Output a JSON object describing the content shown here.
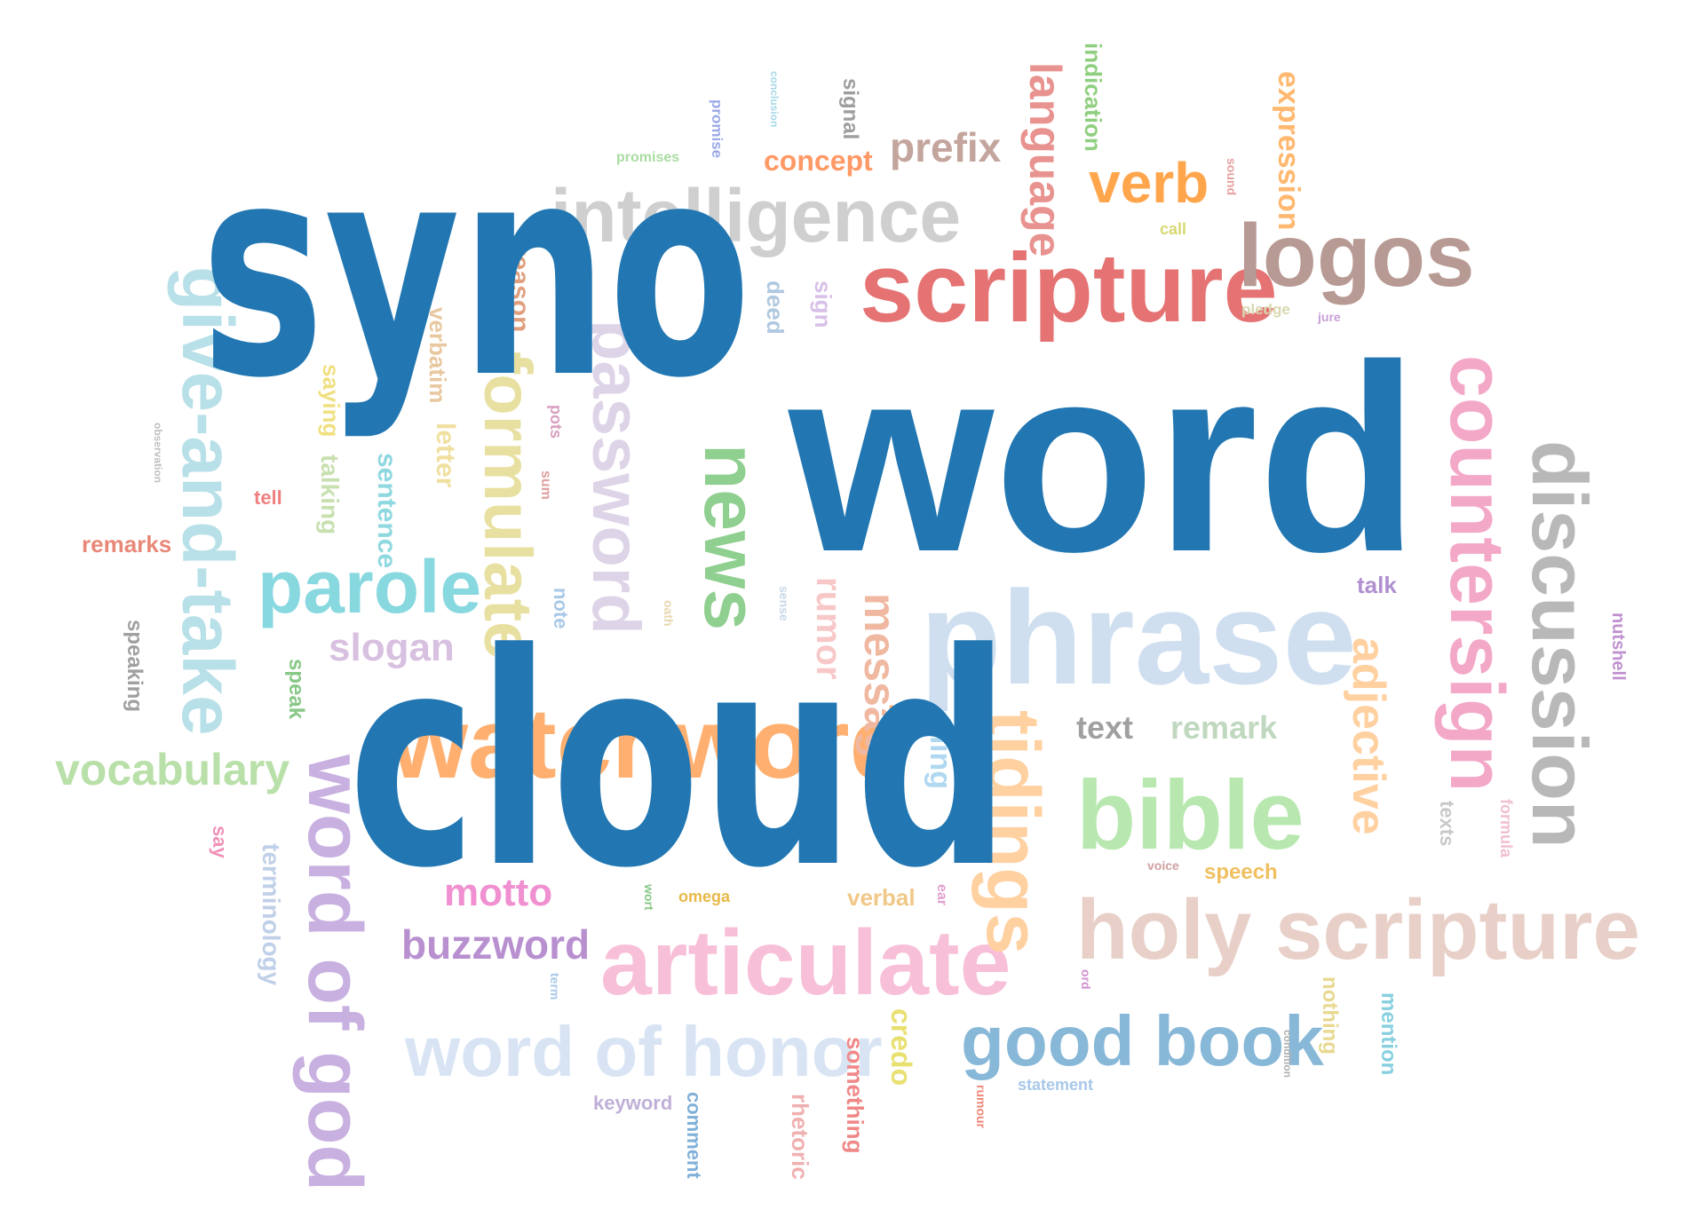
{
  "headline": {
    "line1": "syno",
    "line2": "word",
    "line3": "cloud",
    "color": "#2277b2"
  },
  "words": [
    {
      "text": "word",
      "color": "#2277b2"
    },
    {
      "text": "intelligence",
      "color": "#cfcfcf"
    },
    {
      "text": "scripture",
      "color": "#e57373"
    },
    {
      "text": "logos",
      "color": "#b89a94"
    },
    {
      "text": "verb",
      "color": "#ffa64d"
    },
    {
      "text": "prefix",
      "color": "#c4a59e"
    },
    {
      "text": "concept",
      "color": "#ff9966"
    },
    {
      "text": "language",
      "color": "#e8938f"
    },
    {
      "text": "indication",
      "color": "#8fcf7f"
    },
    {
      "text": "expression",
      "color": "#ffb870"
    },
    {
      "text": "signal",
      "color": "#9e9e9e"
    },
    {
      "text": "conclusion",
      "color": "#a8d8e8"
    },
    {
      "text": "promise",
      "color": "#9aa8e8"
    },
    {
      "text": "promises",
      "color": "#a8dca0"
    },
    {
      "text": "sound",
      "color": "#e8a0a0"
    },
    {
      "text": "call",
      "color": "#d8d870"
    },
    {
      "text": "pledge",
      "color": "#d8d8b0"
    },
    {
      "text": "jure",
      "color": "#c8a0d8"
    },
    {
      "text": "countersign",
      "color": "#f4a8c8"
    },
    {
      "text": "discussion",
      "color": "#b8b8b8"
    },
    {
      "text": "phrase",
      "color": "#cfdff0"
    },
    {
      "text": "news",
      "color": "#8fcf8f"
    },
    {
      "text": "password",
      "color": "#ded4e8"
    },
    {
      "text": "formulate",
      "color": "#e8e0a0"
    },
    {
      "text": "give-and-take",
      "color": "#b8e0e8"
    },
    {
      "text": "parole",
      "color": "#88d8e0"
    },
    {
      "text": "slogan",
      "color": "#d8c0e0"
    },
    {
      "text": "vocabulary",
      "color": "#b8e0a8"
    },
    {
      "text": "remarks",
      "color": "#e88878"
    },
    {
      "text": "tell",
      "color": "#f08080"
    },
    {
      "text": "speaking",
      "color": "#a0a0a0"
    },
    {
      "text": "speak",
      "color": "#88c888"
    },
    {
      "text": "watchword",
      "color": "#ffb070"
    },
    {
      "text": "word of god",
      "color": "#c8b0e0"
    },
    {
      "text": "motto",
      "color": "#f090d0"
    },
    {
      "text": "buzzword",
      "color": "#b890d0"
    },
    {
      "text": "articulate",
      "color": "#f8c0d8"
    },
    {
      "text": "tidings",
      "color": "#ffd0a0"
    },
    {
      "text": "bible",
      "color": "#b8e8b0"
    },
    {
      "text": "holy scripture",
      "color": "#e8d0c8"
    },
    {
      "text": "good book",
      "color": "#88b8d8"
    },
    {
      "text": "word of honor",
      "color": "#d8e4f4"
    },
    {
      "text": "text",
      "color": "#a0a0a0"
    },
    {
      "text": "remark",
      "color": "#c0d8c0"
    },
    {
      "text": "adjective",
      "color": "#ffd0a0"
    },
    {
      "text": "talk",
      "color": "#b090d0"
    },
    {
      "text": "nutshell",
      "color": "#c090d0"
    },
    {
      "text": "formula",
      "color": "#f0c0d0"
    },
    {
      "text": "texts",
      "color": "#c8c8c8"
    },
    {
      "text": "speech",
      "color": "#f0c060"
    },
    {
      "text": "voice",
      "color": "#d0a0a0"
    },
    {
      "text": "nothing",
      "color": "#e8d890"
    },
    {
      "text": "mention",
      "color": "#88d0e0"
    },
    {
      "text": "condition",
      "color": "#b0b0b0"
    },
    {
      "text": "statement",
      "color": "#a8c8e8"
    },
    {
      "text": "rumour",
      "color": "#f08878"
    },
    {
      "text": "credo",
      "color": "#e8e070"
    },
    {
      "text": "something",
      "color": "#f08888"
    },
    {
      "text": "rhetoric",
      "color": "#f0b0b0"
    },
    {
      "text": "comment",
      "color": "#80b0d8"
    },
    {
      "text": "keyword",
      "color": "#c0b0d8"
    },
    {
      "text": "terminology",
      "color": "#c0d0e8"
    },
    {
      "text": "say",
      "color": "#f090b8"
    },
    {
      "text": "omega",
      "color": "#e8b848"
    },
    {
      "text": "verbal",
      "color": "#f0c888"
    },
    {
      "text": "ear",
      "color": "#e0a0d0"
    },
    {
      "text": "wort",
      "color": "#88c888"
    },
    {
      "text": "term",
      "color": "#a8c8e8"
    },
    {
      "text": "ord",
      "color": "#d090d0"
    },
    {
      "text": "thing",
      "color": "#b0d8f0"
    },
    {
      "text": "message",
      "color": "#f0b8a0"
    },
    {
      "text": "rumor",
      "color": "#f8c8c8"
    },
    {
      "text": "sense",
      "color": "#c8d8e8"
    },
    {
      "text": "note",
      "color": "#a8c8e8"
    },
    {
      "text": "oath",
      "color": "#e8d8b0"
    },
    {
      "text": "sum",
      "color": "#e0a0a0"
    },
    {
      "text": "pots",
      "color": "#d8a0c0"
    },
    {
      "text": "letter",
      "color": "#f0e0a0"
    },
    {
      "text": "verbatim",
      "color": "#e8c8a0"
    },
    {
      "text": "saying",
      "color": "#f0e080"
    },
    {
      "text": "talking",
      "color": "#c8e0b0"
    },
    {
      "text": "sentence",
      "color": "#90d8e0"
    },
    {
      "text": "reason",
      "color": "#e0a080"
    },
    {
      "text": "deed",
      "color": "#b0c8e0"
    },
    {
      "text": "sign",
      "color": "#d8c0e8"
    },
    {
      "text": "observation",
      "color": "#c0c0c0"
    }
  ]
}
